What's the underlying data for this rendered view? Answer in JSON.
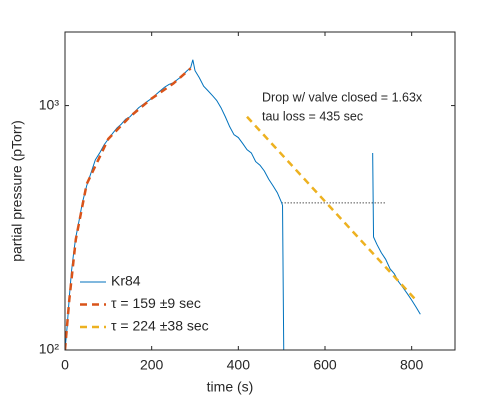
{
  "chart_data": {
    "type": "line",
    "xlabel": "time (s)",
    "ylabel": "partial pressure (pTorr)",
    "xlim": [
      0,
      900
    ],
    "xticks": [
      0,
      200,
      400,
      600,
      800
    ],
    "ylim": [
      100,
      2000
    ],
    "yticks": [
      {
        "value": 100,
        "label": "10²"
      },
      {
        "value": 1000,
        "label": "10³"
      }
    ],
    "log_y": true,
    "legend": "lower left",
    "series": [
      {
        "name": "Kr84",
        "color": "#0072BD",
        "dash": false,
        "x": [
          0,
          5,
          10,
          15,
          20,
          25,
          30,
          40,
          50,
          60,
          70,
          80,
          90,
          100,
          110,
          120,
          130,
          140,
          150,
          160,
          170,
          180,
          190,
          200,
          210,
          220,
          230,
          240,
          250,
          260,
          270,
          280,
          290,
          295,
          300,
          310,
          320,
          330,
          340,
          350,
          360,
          370,
          380,
          390,
          400,
          410,
          420,
          430,
          440,
          450,
          460,
          470,
          480,
          490,
          500,
          502,
          505,
          600,
          710,
          712,
          720,
          730,
          740,
          750,
          760,
          770,
          780,
          790,
          800,
          810,
          820
        ],
        "values": [
          100,
          125,
          165,
          210,
          250,
          290,
          320,
          400,
          470,
          530,
          600,
          640,
          690,
          730,
          770,
          810,
          840,
          880,
          900,
          940,
          980,
          1010,
          1040,
          1070,
          1110,
          1150,
          1190,
          1220,
          1240,
          1280,
          1320,
          1380,
          1430,
          1540,
          1390,
          1300,
          1200,
          1150,
          1100,
          1050,
          980,
          900,
          820,
          760,
          740,
          700,
          660,
          640,
          590,
          570,
          540,
          500,
          470,
          440,
          400,
          390,
          90,
          null,
          640,
          290,
          270,
          250,
          235,
          215,
          205,
          190,
          180,
          170,
          160,
          150,
          140
        ]
      },
      {
        "name": "τ = 159 ±9 sec",
        "color": "#D95319",
        "dash": true,
        "x": [
          0,
          10,
          25,
          50,
          100,
          150,
          200,
          250,
          290
        ],
        "values": [
          100,
          161,
          284,
          477,
          731,
          901,
          1069,
          1231,
          1420
        ]
      },
      {
        "name": "τ = 224 ±38 sec",
        "color": "#EDB120",
        "dash": true,
        "x": [
          420,
          810
        ],
        "values": [
          900,
          160
        ]
      }
    ],
    "reference_line": {
      "x": [
        500,
        740
      ],
      "value": 400
    },
    "annotations": [
      "Drop w/ valve closed = 1.63x",
      "tau loss = 435 sec"
    ]
  }
}
